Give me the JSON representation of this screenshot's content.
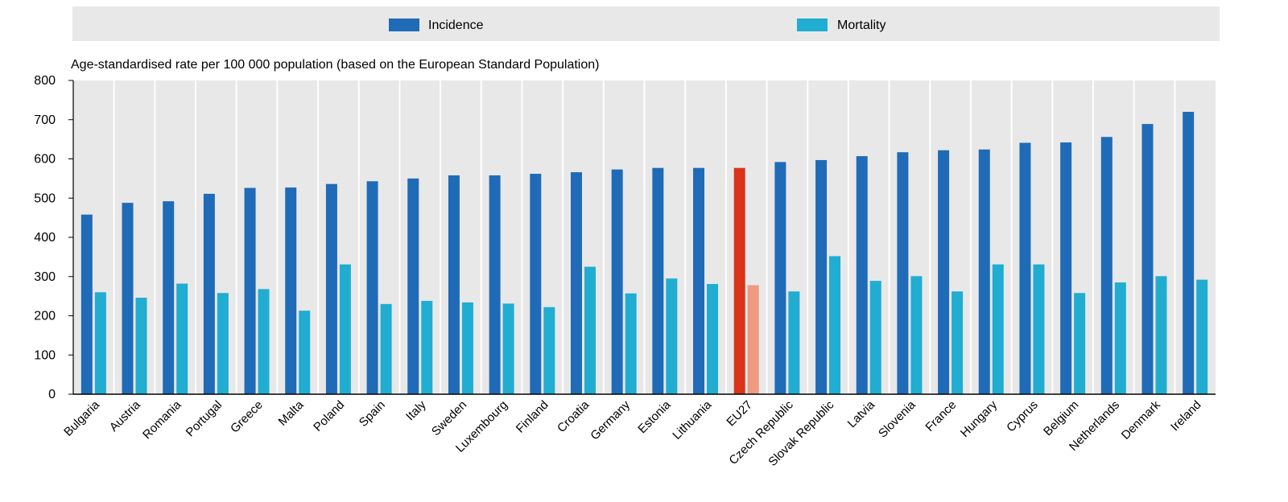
{
  "chart_data": {
    "type": "bar",
    "title": "",
    "ylabel": "Age-standardised rate per 100 000 population (based on the European Standard Population)",
    "xlabel": "",
    "ylim": [
      0,
      800
    ],
    "yticks": [
      0,
      100,
      200,
      300,
      400,
      500,
      600,
      700,
      800
    ],
    "grid": "vertical bands",
    "legend_position": "top",
    "categories": [
      "Bulgaria",
      "Austria",
      "Romania",
      "Portugal",
      "Greece",
      "Malta",
      "Poland",
      "Spain",
      "Italy",
      "Sweden",
      "Luxembourg",
      "Finland",
      "Croatia",
      "Germany",
      "Estonia",
      "Lithuania",
      "EU27",
      "Czech Republic",
      "Slovak Republic",
      "Latvia",
      "Slovenia",
      "France",
      "Hungary",
      "Cyprus",
      "Belgium",
      "Netherlands",
      "Denmark",
      "Ireland"
    ],
    "highlight_category": "EU27",
    "series": [
      {
        "name": "Incidence",
        "color": "#1f6bb8",
        "highlight_color": "#d9341a",
        "values": [
          458,
          488,
          492,
          511,
          526,
          527,
          536,
          543,
          550,
          558,
          558,
          562,
          566,
          573,
          577,
          577,
          577,
          592,
          597,
          607,
          617,
          622,
          624,
          641,
          642,
          656,
          689,
          720
        ]
      },
      {
        "name": "Mortality",
        "color": "#20add1",
        "highlight_color": "#f19a82",
        "values": [
          260,
          246,
          282,
          258,
          268,
          213,
          331,
          230,
          238,
          234,
          231,
          222,
          325,
          257,
          295,
          281,
          278,
          262,
          352,
          289,
          301,
          262,
          331,
          331,
          258,
          285,
          301,
          292
        ]
      }
    ]
  }
}
